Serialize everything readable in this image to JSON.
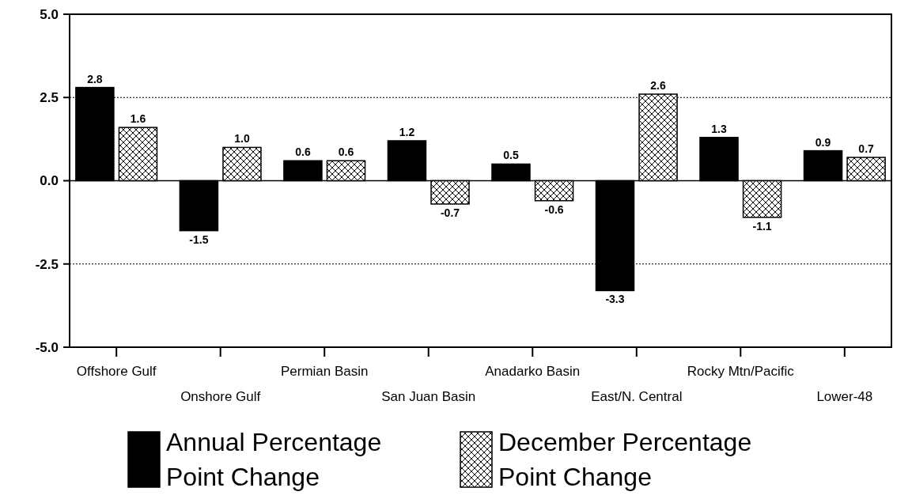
{
  "chart_data": {
    "type": "bar",
    "categories": [
      "Offshore Gulf",
      "Onshore Gulf",
      "Permian Basin",
      "San Juan Basin",
      "Anadarko Basin",
      "East/N. Central",
      "Rocky Mtn/Pacific",
      "Lower-48"
    ],
    "series": [
      {
        "name": "Annual Percentage Point Change",
        "color": "#000000",
        "values": [
          2.8,
          -1.5,
          0.6,
          1.2,
          0.5,
          -3.3,
          1.3,
          0.9
        ],
        "value_labels": [
          "2.8",
          "-1.5",
          "0.6",
          "1.2",
          "0.5",
          "-3.3",
          "1.3",
          "0.9"
        ]
      },
      {
        "name": "December Percentage Point Change",
        "color": "#000000",
        "values": [
          1.6,
          1.0,
          0.6,
          -0.7,
          -0.6,
          2.6,
          -1.1,
          0.7
        ],
        "value_labels": [
          "1.6",
          "1.0",
          "0.6",
          "-0.7",
          "-0.6",
          "2.6",
          "-1.1",
          "0.7"
        ]
      }
    ],
    "ylim": [
      -5,
      5
    ],
    "yticks": [
      {
        "value": -5,
        "label": "-5.0"
      },
      {
        "value": -2.5,
        "label": "-2.5"
      },
      {
        "value": 0,
        "label": "0.0"
      },
      {
        "value": 2.5,
        "label": "2.5"
      },
      {
        "value": 5,
        "label": "5.0"
      }
    ],
    "grid": "y",
    "legend": "bottom"
  }
}
